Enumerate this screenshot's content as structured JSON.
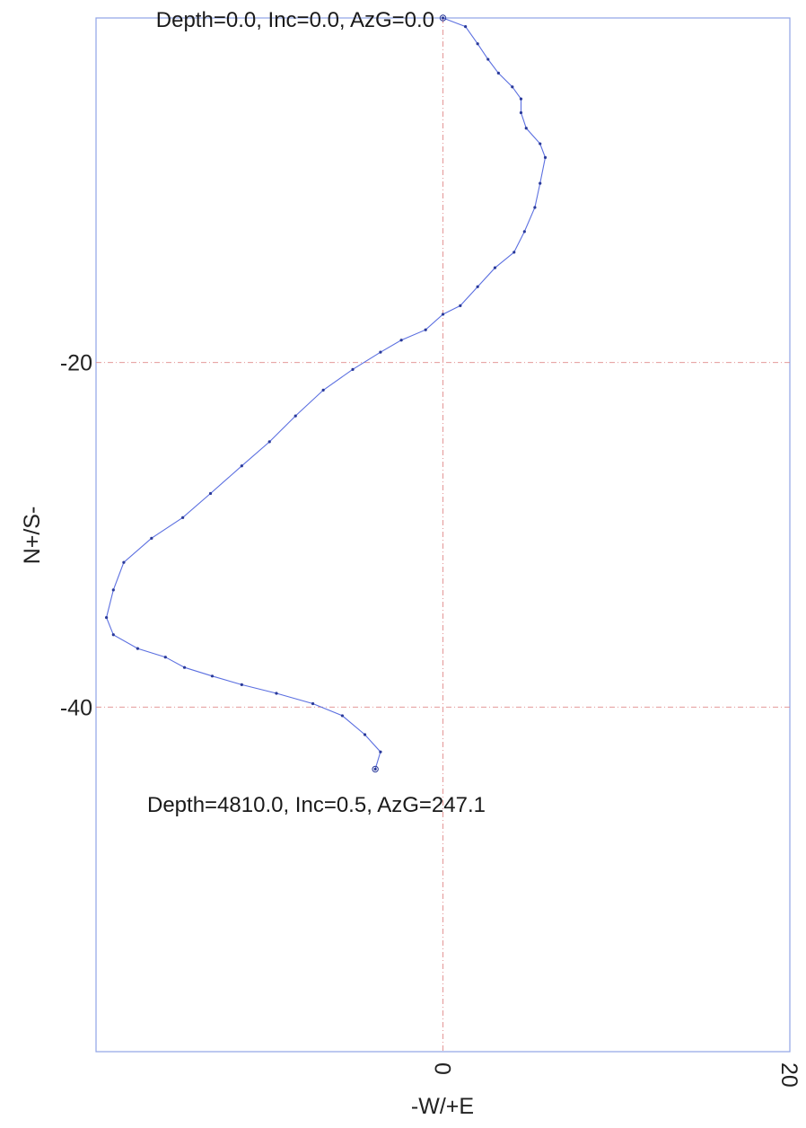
{
  "chart_data": {
    "type": "line",
    "xlabel": "-W/+E",
    "ylabel": "N+/S-",
    "xlim": [
      -20,
      20
    ],
    "ylim": [
      -60,
      0
    ],
    "x_ticks": [
      {
        "value": 0,
        "label": "0"
      },
      {
        "value": 20,
        "label": "20"
      }
    ],
    "y_ticks": [
      {
        "value": -20,
        "label": "-20"
      },
      {
        "value": -40,
        "label": "-40"
      }
    ],
    "grid": true,
    "colors": {
      "line": "#5b6fe0",
      "point": "#2a3a9a",
      "grid": "#e08a8a",
      "frame": "#8fa4e6"
    },
    "series": [
      {
        "x": [
          0.0,
          1.3,
          2.0,
          2.6,
          3.2,
          4.0,
          4.5,
          4.5,
          4.8,
          5.6,
          5.9,
          5.6,
          5.3,
          4.7,
          4.1,
          3.0,
          2.0,
          1.0,
          0.0,
          -1.0,
          -2.4,
          -3.6,
          -5.2,
          -6.9,
          -8.5,
          -10.0,
          -11.6,
          -13.4,
          -15.0,
          -16.8,
          -18.4,
          -19.0,
          -19.4,
          -19.0,
          -17.6,
          -16.0,
          -14.9,
          -13.3,
          -11.6,
          -9.6,
          -7.5,
          -5.8,
          -4.5,
          -3.6,
          -3.9
        ],
        "y": [
          0.0,
          -0.5,
          -1.5,
          -2.4,
          -3.2,
          -4.0,
          -4.7,
          -5.5,
          -6.4,
          -7.3,
          -8.1,
          -9.6,
          -11.0,
          -12.4,
          -13.6,
          -14.5,
          -15.6,
          -16.7,
          -17.2,
          -18.1,
          -18.7,
          -19.4,
          -20.4,
          -21.6,
          -23.1,
          -24.6,
          -26.0,
          -27.6,
          -29.0,
          -30.2,
          -31.6,
          -33.2,
          -34.8,
          -35.8,
          -36.6,
          -37.1,
          -37.7,
          -38.2,
          -38.7,
          -39.2,
          -39.8,
          -40.5,
          -41.6,
          -42.6,
          -43.6
        ]
      }
    ],
    "annotations": [
      {
        "text": "Depth=0.0, Inc=0.0, AzG=0.0",
        "x": 0.0,
        "y": 0.0
      },
      {
        "text": "Depth=4810.0, Inc=0.5, AzG=247.1",
        "x": -3.9,
        "y": -43.6
      }
    ]
  }
}
